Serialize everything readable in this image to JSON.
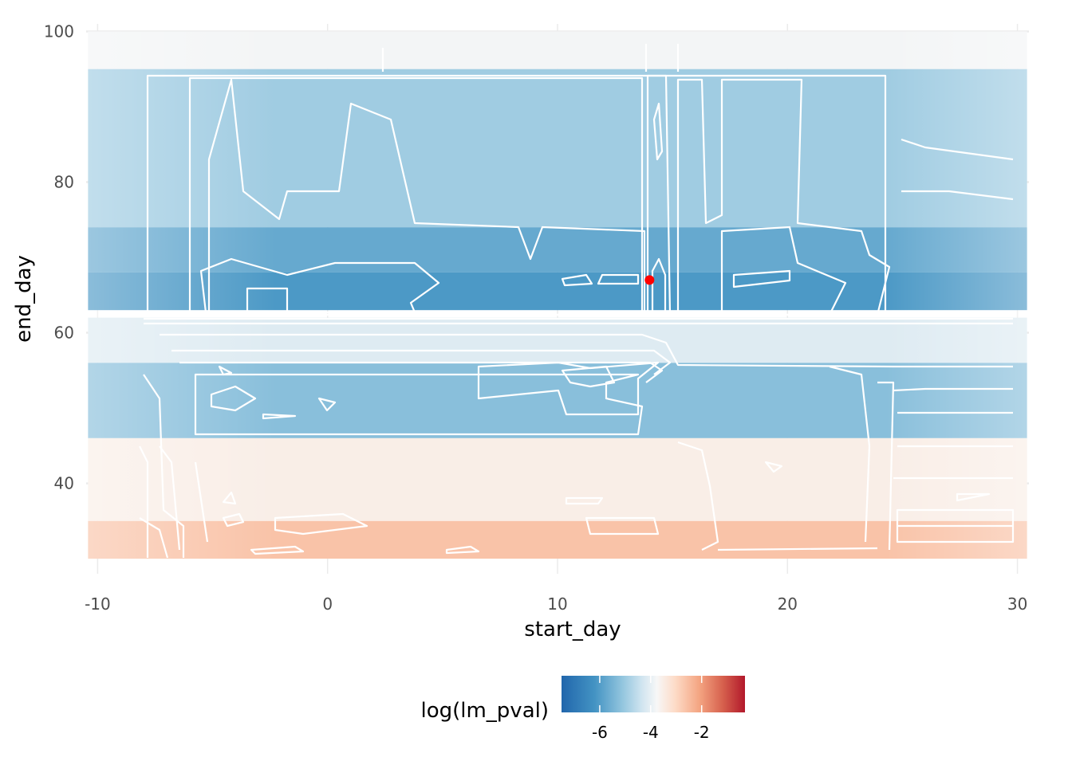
{
  "chart_data": {
    "type": "heatmap",
    "xlabel": "start_day",
    "ylabel": "end_day",
    "x_ticks": [
      -10,
      0,
      10,
      20,
      30
    ],
    "y_ticks": [
      40,
      60,
      80,
      100
    ],
    "xlim": [
      -10.5,
      30.5
    ],
    "ylim": [
      28,
      101
    ],
    "grid": true,
    "legend": {
      "title": "log(lm_pval)",
      "position": "bottom",
      "ticks": [
        -6,
        -4,
        -2
      ],
      "range": [
        -7.5,
        -0.3
      ],
      "colors": [
        "#2166ac",
        "#4393c3",
        "#92c5de",
        "#d1e5f0",
        "#f7f7f7",
        "#fddbc7",
        "#f4a582",
        "#d6604d",
        "#b2182b"
      ]
    },
    "x_range": [
      -10,
      30
    ],
    "y_range": [
      30,
      100
    ],
    "bands": [
      {
        "y": [
          95,
          100
        ],
        "value": -4.0
      },
      {
        "y": [
          74,
          95
        ],
        "value": -5.5
      },
      {
        "y": [
          68,
          74
        ],
        "value": -6.2
      },
      {
        "y": [
          63,
          68
        ],
        "value": -6.5
      },
      {
        "y": [
          56,
          62
        ],
        "value": -4.5
      },
      {
        "y": [
          46,
          56
        ],
        "value": -5.8
      },
      {
        "y": [
          35,
          46
        ],
        "value": -3.6
      },
      {
        "y": [
          30,
          35
        ],
        "value": -2.6
      }
    ],
    "highlight_point": {
      "x": 14,
      "y": 67,
      "color": "#ff0000"
    }
  }
}
